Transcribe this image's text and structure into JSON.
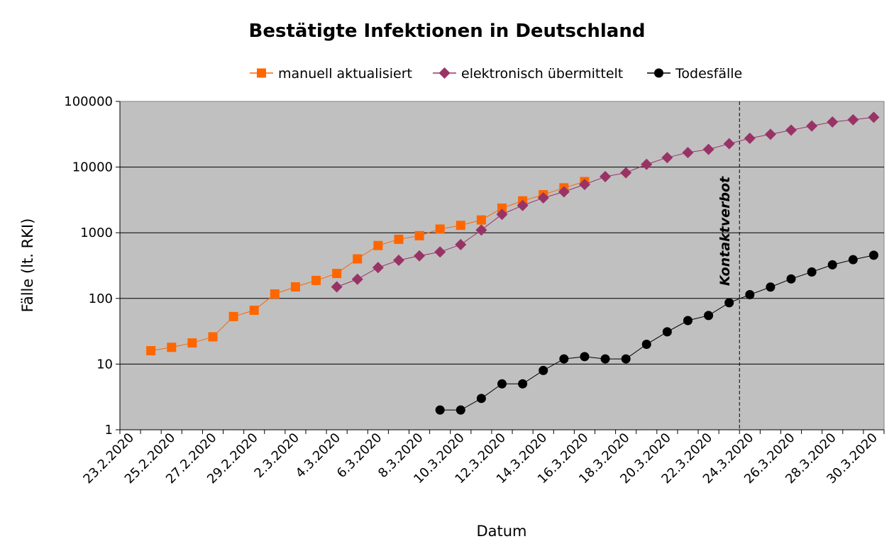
{
  "chart_data": {
    "type": "line",
    "title": "Bestätigte Infektionen in Deutschland",
    "xlabel": "Datum",
    "ylabel": "Fälle (lt. RKI)",
    "yscale": "log",
    "ylim": [
      1,
      100000
    ],
    "y_ticks": [
      "1",
      "10",
      "100",
      "1000",
      "10000",
      "100000"
    ],
    "grid": "horizontal",
    "legend_position": "top",
    "categories": [
      "23.2.2020",
      "24.2.2020",
      "25.2.2020",
      "26.2.2020",
      "27.2.2020",
      "28.2.2020",
      "29.2.2020",
      "1.3.2020",
      "2.3.2020",
      "3.3.2020",
      "4.3.2020",
      "5.3.2020",
      "6.3.2020",
      "7.3.2020",
      "8.3.2020",
      "9.3.2020",
      "10.3.2020",
      "11.3.2020",
      "12.3.2020",
      "13.3.2020",
      "14.3.2020",
      "15.3.2020",
      "16.3.2020",
      "17.3.2020",
      "18.3.2020",
      "19.3.2020",
      "20.3.2020",
      "21.3.2020",
      "22.3.2020",
      "23.3.2020",
      "24.3.2020",
      "25.3.2020",
      "26.3.2020",
      "27.3.2020",
      "28.3.2020",
      "29.3.2020",
      "30.3.2020"
    ],
    "x_tick_labels": [
      "23.2.2020",
      "25.2.2020",
      "27.2.2020",
      "29.2.2020",
      "2.3.2020",
      "4.3.2020",
      "6.3.2020",
      "8.3.2020",
      "10.3.2020",
      "12.3.2020",
      "14.3.2020",
      "16.3.2020",
      "18.3.2020",
      "20.3.2020",
      "22.3.2020",
      "24.3.2020",
      "26.3.2020",
      "28.3.2020",
      "30.3.2020"
    ],
    "series": [
      {
        "name": "manuell aktualisiert",
        "color": "#ff6600",
        "marker": "square",
        "values": [
          null,
          16,
          18,
          21,
          26,
          53,
          66,
          117,
          150,
          188,
          240,
          400,
          639,
          795,
          902,
          1139,
          1296,
          1567,
          2369,
          3062,
          3795,
          4838,
          6012,
          null,
          null,
          null,
          null,
          null,
          null,
          null,
          null,
          null,
          null,
          null,
          null,
          null,
          null
        ]
      },
      {
        "name": "elektronisch übermittelt",
        "color": "#993366",
        "marker": "diamond",
        "values": [
          null,
          null,
          null,
          null,
          null,
          null,
          null,
          null,
          null,
          null,
          150,
          196,
          295,
          381,
          445,
          510,
          660,
          1100,
          1908,
          2600,
          3400,
          4200,
          5432,
          7156,
          8198,
          10999,
          13957,
          16662,
          18610,
          22672,
          27436,
          31554,
          36508,
          42288,
          48582,
          52547,
          57298
        ]
      },
      {
        "name": "Todesfälle",
        "color": "#000000",
        "marker": "circle",
        "values": [
          null,
          null,
          null,
          null,
          null,
          null,
          null,
          null,
          null,
          null,
          null,
          null,
          null,
          null,
          null,
          2,
          2,
          3,
          5,
          5,
          8,
          12,
          13,
          12,
          12,
          20,
          31,
          46,
          55,
          86,
          114,
          149,
          198,
          253,
          325,
          389,
          455
        ]
      }
    ],
    "annotations": [
      {
        "text": "Kontaktverbot",
        "x": "23.3.2020",
        "style": "dashed vertical line"
      }
    ]
  }
}
